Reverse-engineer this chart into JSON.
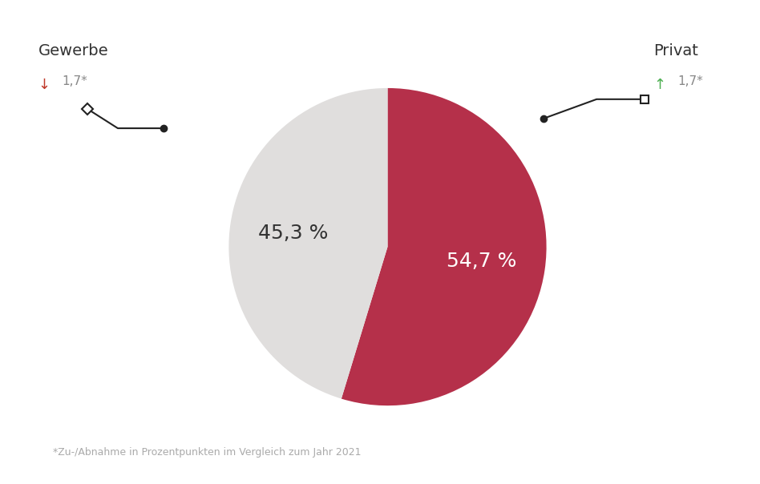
{
  "slices": [
    54.7,
    45.3
  ],
  "slice_colors": [
    "#b5304a",
    "#e0dedd"
  ],
  "slice_labels": [
    "54,7 %",
    "45,3 %"
  ],
  "label_colors": [
    "white",
    "#333333"
  ],
  "label_fontsizes": [
    18,
    18
  ],
  "gewerbe_label": "Gewerbe",
  "gewerbe_change_arrow": "↓",
  "gewerbe_change_arrow_color": "#c0392b",
  "gewerbe_change_text": "1,7*",
  "gewerbe_change_color": "#888888",
  "privat_label": "Privat",
  "privat_change_arrow": "↑",
  "privat_change_arrow_color": "#4caf50",
  "privat_change_text": "1,7*",
  "privat_change_color": "#888888",
  "footnote": "*Zu-/Abnahme in Prozentpunkten im Vergleich zum Jahr 2021",
  "footnote_color": "#aaaaaa",
  "background_color": "#ffffff",
  "start_angle": 90
}
